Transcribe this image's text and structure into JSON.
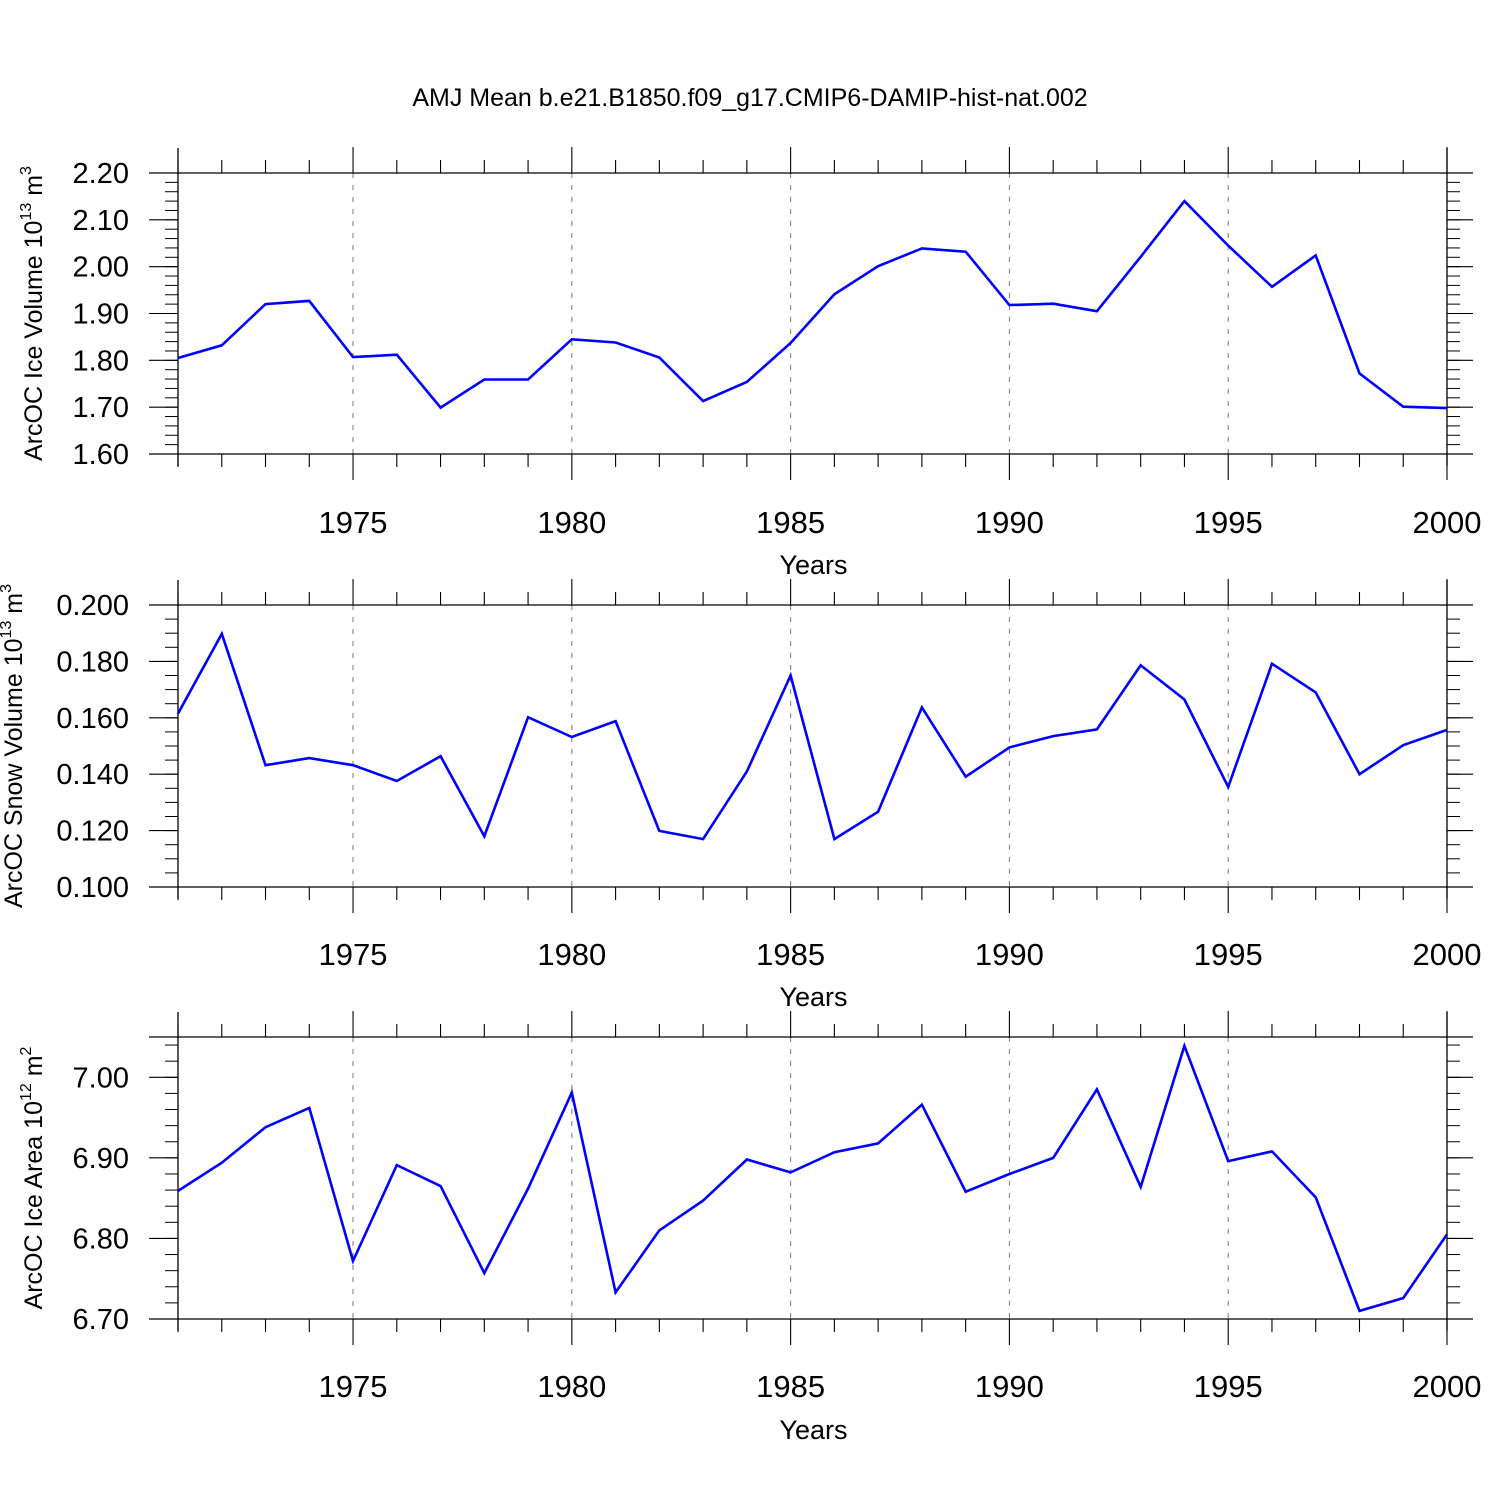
{
  "title": "AMJ Mean b.e21.B1850.f09_g17.CMIP6-DAMIP-hist-nat.002",
  "colors": {
    "series": "#0000ff",
    "axis": "#000000",
    "grid": "#777777"
  },
  "chart_data": [
    {
      "type": "line",
      "ylabel": "ArcOC Ice Volume 10",
      "ylabel_exp": "13",
      "ylabel_unit": " m",
      "ylabel_unit_exp": "3",
      "xlabel": "Years",
      "xlim": [
        1971,
        2000
      ],
      "ylim": [
        1.6,
        2.2
      ],
      "xticks": [
        "1975",
        "1980",
        "1985",
        "1990",
        "1995",
        "2000"
      ],
      "yticks": [
        "1.60",
        "1.70",
        "1.80",
        "1.90",
        "2.00",
        "2.10",
        "2.20"
      ],
      "grid": "vertical dashed at major x ticks",
      "x": [
        1971,
        1972,
        1973,
        1974,
        1975,
        1976,
        1977,
        1978,
        1979,
        1980,
        1981,
        1982,
        1983,
        1984,
        1985,
        1986,
        1987,
        1988,
        1989,
        1990,
        1991,
        1992,
        1993,
        1994,
        1995,
        1996,
        1997,
        1998,
        1999,
        2000
      ],
      "y": [
        1.805,
        1.832,
        1.92,
        1.927,
        1.807,
        1.812,
        1.699,
        1.759,
        1.759,
        1.845,
        1.838,
        1.806,
        1.713,
        1.754,
        1.837,
        1.941,
        2.001,
        2.039,
        2.032,
        1.918,
        1.921,
        1.905,
        2.021,
        2.14,
        2.045,
        1.957,
        2.024,
        1.772,
        1.701,
        1.698
      ]
    },
    {
      "type": "line",
      "ylabel": "ArcOC Snow Volume 10",
      "ylabel_exp": "13",
      "ylabel_unit": " m",
      "ylabel_unit_exp": "3",
      "xlabel": "Years",
      "xlim": [
        1971,
        2000
      ],
      "ylim": [
        0.1,
        0.2
      ],
      "xticks": [
        "1975",
        "1980",
        "1985",
        "1990",
        "1995",
        "2000"
      ],
      "yticks": [
        "0.100",
        "0.120",
        "0.140",
        "0.160",
        "0.180",
        "0.200"
      ],
      "grid": "vertical dashed at major x ticks",
      "x": [
        1971,
        1972,
        1973,
        1974,
        1975,
        1976,
        1977,
        1978,
        1979,
        1980,
        1981,
        1982,
        1983,
        1984,
        1985,
        1986,
        1987,
        1988,
        1989,
        1990,
        1991,
        1992,
        1993,
        1994,
        1995,
        1996,
        1997,
        1998,
        1999,
        2000
      ],
      "y": [
        0.1615,
        0.1898,
        0.1432,
        0.1457,
        0.1432,
        0.1376,
        0.1464,
        0.118,
        0.1602,
        0.1532,
        0.1588,
        0.1199,
        0.117,
        0.141,
        0.175,
        0.117,
        0.1267,
        0.1637,
        0.1391,
        0.1495,
        0.1535,
        0.1559,
        0.1786,
        0.1665,
        0.1355,
        0.1792,
        0.169,
        0.14,
        0.1503,
        0.1557
      ]
    },
    {
      "type": "line",
      "ylabel": "ArcOC Ice Area 10",
      "ylabel_exp": "12",
      "ylabel_unit": " m",
      "ylabel_unit_exp": "2",
      "xlabel": "Years",
      "xlim": [
        1971,
        2000
      ],
      "ylim": [
        6.7,
        7.05
      ],
      "xticks": [
        "1975",
        "1980",
        "1985",
        "1990",
        "1995",
        "2000"
      ],
      "yticks": [
        "6.70",
        "6.80",
        "6.90",
        "7.00"
      ],
      "grid": "vertical dashed at major x ticks",
      "x": [
        1971,
        1972,
        1973,
        1974,
        1975,
        1976,
        1977,
        1978,
        1979,
        1980,
        1981,
        1982,
        1983,
        1984,
        1985,
        1986,
        1987,
        1988,
        1989,
        1990,
        1991,
        1992,
        1993,
        1994,
        1995,
        1996,
        1997,
        1998,
        1999,
        2000
      ],
      "y": [
        6.859,
        6.894,
        6.938,
        6.962,
        6.772,
        6.891,
        6.865,
        6.757,
        6.862,
        6.981,
        6.733,
        6.81,
        6.847,
        6.898,
        6.882,
        6.907,
        6.918,
        6.966,
        6.858,
        6.88,
        6.9,
        6.985,
        6.864,
        7.039,
        6.896,
        6.908,
        6.851,
        6.71,
        6.726,
        6.805
      ]
    }
  ]
}
